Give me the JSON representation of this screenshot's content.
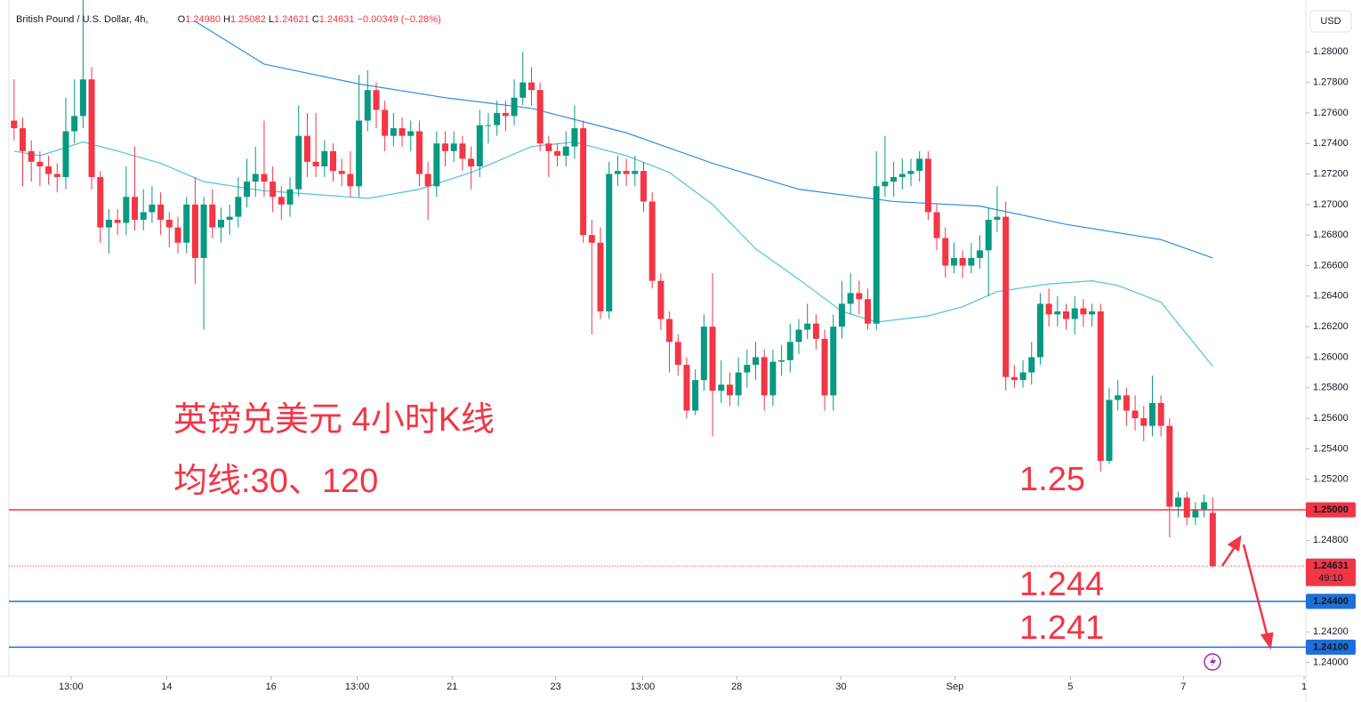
{
  "chart_data": {
    "type": "candlestick",
    "header": {
      "symbol": "British Pound / U.S. Dollar, 4h,",
      "open_label": "O",
      "open": "1.24980",
      "high_label": "H",
      "high": "1.25082",
      "low_label": "L",
      "low": "1.24621",
      "close_label": "C",
      "close": "1.24631",
      "change": "−0.00349 (−0.28%)"
    },
    "currency": "USD",
    "annotations": [
      "英镑兑美元 4小时K线",
      "均线:30、120",
      "1.25",
      "1.244",
      "1.241"
    ],
    "up_color": "#089981",
    "down_color": "#f23645",
    "open": [
      1.2755,
      1.275,
      1.2735,
      1.2728,
      1.2725,
      1.272,
      1.2718,
      1.2748,
      1.2758,
      1.2782,
      1.2718,
      1.2685,
      1.269,
      1.2688,
      1.2705,
      1.269,
      1.2695,
      1.27,
      1.269,
      1.2685,
      1.2675,
      1.27,
      1.2665,
      1.27,
      1.2685,
      1.269,
      1.2692,
      1.2705,
      1.2715,
      1.272,
      1.2715,
      1.2705,
      1.27,
      1.271,
      1.2745,
      1.2728,
      1.2725,
      1.2735,
      1.2722,
      1.272,
      1.2712,
      1.2755,
      1.2775,
      1.2762,
      1.2745,
      1.275,
      1.2745,
      1.2748,
      1.272,
      1.2712,
      1.274,
      1.2735,
      1.274,
      1.273,
      1.2725,
      1.2752,
      1.2752,
      1.276,
      1.2758,
      1.277,
      1.278,
      1.2775,
      1.274,
      1.2735,
      1.2732,
      1.2738,
      1.275,
      1.268,
      1.2675,
      1.263,
      1.272,
      1.2722,
      1.272,
      1.2722,
      1.2702,
      1.265,
      1.2625,
      1.261,
      1.2595,
      1.2565,
      1.2585,
      1.262,
      1.2578,
      1.2582,
      1.2575,
      1.259,
      1.2595,
      1.26,
      1.2575,
      1.2597,
      1.2598,
      1.261,
      1.2618,
      1.2622,
      1.2612,
      1.2575,
      1.262,
      1.2635,
      1.2642,
      1.2638,
      1.2622,
      1.2712,
      1.2715,
      1.2718,
      1.272,
      1.2722,
      1.273,
      1.2695,
      1.2678,
      1.266,
      1.2665,
      1.266,
      1.2665,
      1.267,
      1.269,
      1.2692,
      1.2587,
      1.2585,
      1.259,
      1.26,
      1.2635,
      1.2628,
      1.263,
      1.2625,
      1.2632,
      1.2628,
      1.263,
      1.2532,
      1.2572,
      1.2575,
      1.2565,
      1.256,
      1.2555,
      1.257,
      1.2555,
      1.2502,
      1.2508,
      1.2495,
      1.25,
      1.2498
    ],
    "high": [
      1.2782,
      1.2757,
      1.2742,
      1.2735,
      1.2732,
      1.2727,
      1.277,
      1.2782,
      1.2835,
      1.279,
      1.2722,
      1.2697,
      1.2697,
      1.2725,
      1.2738,
      1.271,
      1.2712,
      1.2708,
      1.2695,
      1.2692,
      1.2705,
      1.2718,
      1.2705,
      1.271,
      1.2698,
      1.27,
      1.2718,
      1.273,
      1.2738,
      1.2755,
      1.2725,
      1.2712,
      1.2718,
      1.2765,
      1.276,
      1.276,
      1.2742,
      1.274,
      1.273,
      1.2735,
      1.2785,
      1.2788,
      1.278,
      1.2768,
      1.276,
      1.2757,
      1.2755,
      1.2755,
      1.2728,
      1.2748,
      1.2748,
      1.2748,
      1.2745,
      1.2738,
      1.2762,
      1.276,
      1.2768,
      1.2768,
      1.2782,
      1.28,
      1.279,
      1.278,
      1.2745,
      1.274,
      1.2748,
      1.2765,
      1.2755,
      1.269,
      1.2685,
      1.2728,
      1.2732,
      1.273,
      1.2732,
      1.2728,
      1.2708,
      1.2655,
      1.263,
      1.2615,
      1.26,
      1.2592,
      1.2628,
      1.2655,
      1.2598,
      1.259,
      1.26,
      1.2605,
      1.261,
      1.2605,
      1.2605,
      1.2608,
      1.2622,
      1.2625,
      1.2635,
      1.2628,
      1.2618,
      1.2628,
      1.265,
      1.2655,
      1.265,
      1.2645,
      1.2735,
      1.2745,
      1.2728,
      1.273,
      1.273,
      1.2735,
      1.2735,
      1.27,
      1.2685,
      1.2675,
      1.267,
      1.2675,
      1.268,
      1.2698,
      1.2712,
      1.2702,
      1.2595,
      1.2598,
      1.261,
      1.2642,
      1.2645,
      1.264,
      1.2635,
      1.264,
      1.2638,
      1.2635,
      1.2635,
      1.258,
      1.2585,
      1.258,
      1.2575,
      1.2568,
      1.2588,
      1.2575,
      1.256,
      1.2512,
      1.2512,
      1.2505,
      1.251,
      1.25082
    ],
    "low": [
      1.2742,
      1.2712,
      1.2715,
      1.2712,
      1.2713,
      1.2708,
      1.271,
      1.274,
      1.275,
      1.271,
      1.2675,
      1.2668,
      1.268,
      1.268,
      1.2683,
      1.2683,
      1.2688,
      1.268,
      1.2672,
      1.2668,
      1.2668,
      1.2648,
      1.2618,
      1.2678,
      1.2675,
      1.268,
      1.2685,
      1.2698,
      1.2705,
      1.2705,
      1.2695,
      1.269,
      1.2692,
      1.2705,
      1.2718,
      1.2718,
      1.2718,
      1.2715,
      1.2712,
      1.2705,
      1.2705,
      1.2748,
      1.275,
      1.2735,
      1.2738,
      1.2738,
      1.2735,
      1.2712,
      1.269,
      1.2705,
      1.2725,
      1.2728,
      1.2722,
      1.271,
      1.2718,
      1.274,
      1.2745,
      1.2748,
      1.2752,
      1.2765,
      1.2765,
      1.2735,
      1.2718,
      1.2725,
      1.2725,
      1.273,
      1.2675,
      1.2615,
      1.2625,
      1.2625,
      1.2712,
      1.2712,
      1.2712,
      1.2695,
      1.2645,
      1.2618,
      1.259,
      1.2588,
      1.256,
      1.2562,
      1.2578,
      1.2548,
      1.257,
      1.2568,
      1.2568,
      1.258,
      1.2585,
      1.2565,
      1.2568,
      1.2588,
      1.259,
      1.2602,
      1.2612,
      1.2605,
      1.2565,
      1.2565,
      1.2612,
      1.2628,
      1.2628,
      1.2618,
      1.2618,
      1.2705,
      1.2705,
      1.271,
      1.2712,
      1.2715,
      1.269,
      1.267,
      1.2652,
      1.2655,
      1.2652,
      1.2655,
      1.2658,
      1.264,
      1.2682,
      1.2578,
      1.258,
      1.258,
      1.2582,
      1.2595,
      1.262,
      1.262,
      1.2618,
      1.2615,
      1.262,
      1.262,
      1.2525,
      1.253,
      1.2565,
      1.2555,
      1.2552,
      1.2545,
      1.2548,
      1.2548,
      1.2482,
      1.2495,
      1.249,
      1.249,
      1.2495,
      1.24621
    ],
    "close": [
      1.275,
      1.2735,
      1.2728,
      1.2725,
      1.272,
      1.2718,
      1.2748,
      1.2758,
      1.2782,
      1.2718,
      1.2685,
      1.269,
      1.2688,
      1.2705,
      1.269,
      1.2695,
      1.27,
      1.269,
      1.2685,
      1.2675,
      1.27,
      1.2665,
      1.27,
      1.2685,
      1.269,
      1.2692,
      1.2705,
      1.2715,
      1.272,
      1.2715,
      1.2705,
      1.27,
      1.271,
      1.2745,
      1.2728,
      1.2725,
      1.2735,
      1.2722,
      1.272,
      1.2712,
      1.2755,
      1.2775,
      1.2762,
      1.2745,
      1.275,
      1.2745,
      1.2748,
      1.272,
      1.2712,
      1.274,
      1.2735,
      1.274,
      1.273,
      1.2725,
      1.2752,
      1.2752,
      1.276,
      1.2758,
      1.277,
      1.278,
      1.2775,
      1.274,
      1.2735,
      1.2732,
      1.2738,
      1.275,
      1.268,
      1.2675,
      1.263,
      1.272,
      1.2722,
      1.272,
      1.2722,
      1.2702,
      1.265,
      1.2625,
      1.261,
      1.2595,
      1.2565,
      1.2585,
      1.262,
      1.2578,
      1.2582,
      1.2575,
      1.259,
      1.2595,
      1.26,
      1.2575,
      1.2597,
      1.2598,
      1.261,
      1.2618,
      1.2622,
      1.2612,
      1.2575,
      1.262,
      1.2635,
      1.2642,
      1.2638,
      1.2622,
      1.2712,
      1.2715,
      1.2718,
      1.272,
      1.2722,
      1.273,
      1.2695,
      1.2678,
      1.266,
      1.2665,
      1.266,
      1.2665,
      1.267,
      1.269,
      1.2692,
      1.2587,
      1.2585,
      1.259,
      1.26,
      1.2635,
      1.2628,
      1.263,
      1.2625,
      1.2632,
      1.2628,
      1.263,
      1.2532,
      1.2572,
      1.2575,
      1.2565,
      1.256,
      1.2555,
      1.257,
      1.2555,
      1.2502,
      1.2508,
      1.2495,
      1.25,
      1.2505,
      1.24631
    ],
    "moving_averages": [
      {
        "color": "#4fc3dc",
        "x": [
          0,
          3,
          8,
          12,
          17,
          22,
          29,
          34,
          41,
          47,
          53,
          60,
          65,
          71,
          76,
          81,
          86,
          91,
          96,
          100,
          106,
          110,
          114,
          120,
          125,
          128,
          133,
          139
        ],
        "values": [
          1.2735,
          1.2732,
          1.2741,
          1.2735,
          1.2727,
          1.2715,
          1.2709,
          1.2707,
          1.2704,
          1.271,
          1.2721,
          1.2738,
          1.2741,
          1.2732,
          1.2721,
          1.27,
          1.2671,
          1.2651,
          1.263,
          1.2623,
          1.2627,
          1.2633,
          1.2643,
          1.2648,
          1.265,
          1.2647,
          1.2636,
          1.2594
        ]
      },
      {
        "color": "#2e8fe0",
        "x": [
          21,
          29,
          40,
          50,
          60,
          71,
          81,
          91,
          102,
          112,
          122,
          133,
          139
        ],
        "values": [
          1.282,
          1.2792,
          1.2779,
          1.277,
          1.2763,
          1.2747,
          1.2727,
          1.271,
          1.2702,
          1.2699,
          1.2687,
          1.2677,
          1.2665
        ]
      }
    ],
    "levels": [
      {
        "value": 1.25,
        "label": "1.25000",
        "color": "#f23645"
      },
      {
        "value": 1.244,
        "label": "1.24400",
        "color": "#1e6fd9"
      },
      {
        "value": 1.241,
        "label": "1.24100",
        "color": "#1e6fd9"
      }
    ],
    "last_price": {
      "value": 1.24631,
      "label": "1.24631",
      "countdown": "49:10",
      "color": "#f23645"
    },
    "xlim": [
      -0.6,
      149.8
    ],
    "xticks": [
      {
        "value": 6.6,
        "label": "13:00"
      },
      {
        "value": 17.7,
        "label": "14"
      },
      {
        "value": 29.8,
        "label": "16"
      },
      {
        "value": 39.8,
        "label": "13:00"
      },
      {
        "value": 50.8,
        "label": "21"
      },
      {
        "value": 62.8,
        "label": "23"
      },
      {
        "value": 72.9,
        "label": "13:00"
      },
      {
        "value": 83.8,
        "label": "28"
      },
      {
        "value": 95.9,
        "label": "30"
      },
      {
        "value": 109.1,
        "label": "Sep"
      },
      {
        "value": 122.5,
        "label": "5"
      },
      {
        "value": 135.6,
        "label": "7"
      },
      {
        "value": 149.6,
        "label": "1"
      }
    ],
    "ylim": [
      1.2391,
      1.2834
    ],
    "yticks": [
      {
        "value": 1.24,
        "label": "1.24000"
      },
      {
        "value": 1.242,
        "label": "1.24200"
      },
      {
        "value": 1.244,
        "label": "1.24400"
      },
      {
        "value": 1.246,
        "label": "1.24600"
      },
      {
        "value": 1.248,
        "label": "1.24800"
      },
      {
        "value": 1.25,
        "label": "1.25000"
      },
      {
        "value": 1.252,
        "label": "1.25200"
      },
      {
        "value": 1.254,
        "label": "1.25400"
      },
      {
        "value": 1.256,
        "label": "1.25600"
      },
      {
        "value": 1.258,
        "label": "1.25800"
      },
      {
        "value": 1.26,
        "label": "1.26000"
      },
      {
        "value": 1.262,
        "label": "1.26200"
      },
      {
        "value": 1.264,
        "label": "1.26400"
      },
      {
        "value": 1.266,
        "label": "1.26600"
      },
      {
        "value": 1.268,
        "label": "1.26800"
      },
      {
        "value": 1.27,
        "label": "1.27000"
      },
      {
        "value": 1.272,
        "label": "1.27200"
      },
      {
        "value": 1.274,
        "label": "1.27400"
      },
      {
        "value": 1.276,
        "label": "1.27600"
      },
      {
        "value": 1.278,
        "label": "1.27800"
      },
      {
        "value": 1.28,
        "label": "1.28000"
      }
    ]
  }
}
